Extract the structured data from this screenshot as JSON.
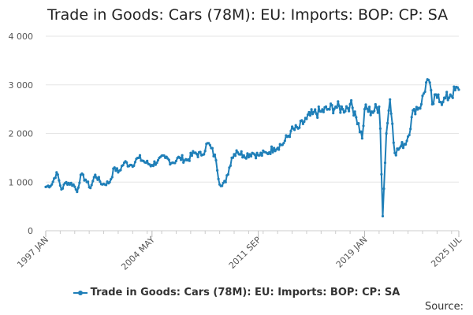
{
  "chart_data": {
    "type": "line",
    "title": "Trade in Goods: Cars (78M): EU: Imports: BOP: CP: SA",
    "xlabel": "",
    "ylabel": "",
    "ylim": [
      0,
      4000
    ],
    "y_ticks": [
      0,
      1000,
      2000,
      3000,
      4000
    ],
    "y_tick_labels": [
      "0",
      "1 000",
      "2 000",
      "3 000",
      "4 000"
    ],
    "x_tick_labels": [
      "1997 JAN",
      "2004 MAY",
      "2011 SEP",
      "2019 JAN",
      "2025 JUL"
    ],
    "x_range": [
      "1997 JAN",
      "2025 JUL"
    ],
    "frequency": "monthly",
    "grid": "horizontal",
    "legend_position": "bottom",
    "series": [
      {
        "name": "Trade in Goods: Cars (78M): EU: Imports: BOP: CP: SA",
        "color": "#1f7fb8",
        "anchors": [
          [
            "1997 JAN",
            900
          ],
          [
            "1997 JUN",
            950
          ],
          [
            "1997 OCT",
            1200
          ],
          [
            "1998 FEB",
            850
          ],
          [
            "1998 JUN",
            1000
          ],
          [
            "1998 DEC",
            950
          ],
          [
            "1999 MAR",
            800
          ],
          [
            "1999 JUN",
            1150
          ],
          [
            "1999 OCT",
            1050
          ],
          [
            "2000 FEB",
            880
          ],
          [
            "2000 JUN",
            1150
          ],
          [
            "2000 DEC",
            950
          ],
          [
            "2001 JUN",
            1000
          ],
          [
            "2001 OCT",
            1300
          ],
          [
            "2002 JAN",
            1200
          ],
          [
            "2002 JUN",
            1400
          ],
          [
            "2002 DEC",
            1350
          ],
          [
            "2003 JUN",
            1500
          ],
          [
            "2003 DEC",
            1400
          ],
          [
            "2004 MAY",
            1350
          ],
          [
            "2004 OCT",
            1450
          ],
          [
            "2005 APR",
            1500
          ],
          [
            "2005 OCT",
            1400
          ],
          [
            "2006 APR",
            1500
          ],
          [
            "2006 OCT",
            1450
          ],
          [
            "2007 APR",
            1600
          ],
          [
            "2007 OCT",
            1550
          ],
          [
            "2008 MAR",
            1800
          ],
          [
            "2008 JUN",
            1700
          ],
          [
            "2008 OCT",
            1450
          ],
          [
            "2009 JAN",
            950
          ],
          [
            "2009 JUN",
            1000
          ],
          [
            "2009 NOV",
            1500
          ],
          [
            "2010 MAR",
            1650
          ],
          [
            "2010 SEP",
            1550
          ],
          [
            "2011 APR",
            1600
          ],
          [
            "2011 SEP",
            1550
          ],
          [
            "2012 APR",
            1600
          ],
          [
            "2012 OCT",
            1700
          ],
          [
            "2013 JUN",
            1800
          ],
          [
            "2013 DEC",
            2050
          ],
          [
            "2014 JUN",
            2100
          ],
          [
            "2015 JAN",
            2300
          ],
          [
            "2015 JUN",
            2400
          ],
          [
            "2016 JAN",
            2450
          ],
          [
            "2016 JUL",
            2500
          ],
          [
            "2017 JAN",
            2550
          ],
          [
            "2017 JUL",
            2500
          ],
          [
            "2018 JAN",
            2600
          ],
          [
            "2018 MAY",
            2450
          ],
          [
            "2018 NOV",
            1900
          ],
          [
            "2019 JAN",
            2500
          ],
          [
            "2019 JUL",
            2450
          ],
          [
            "2020 JAN",
            2550
          ],
          [
            "2020 FEB",
            2100
          ],
          [
            "2020 APR",
            300
          ],
          [
            "2020 JUL",
            2000
          ],
          [
            "2020 OCT",
            2700
          ],
          [
            "2020 DEC",
            2200
          ],
          [
            "2021 FEB",
            1600
          ],
          [
            "2021 JUN",
            1700
          ],
          [
            "2021 DEC",
            1850
          ],
          [
            "2022 JUN",
            2500
          ],
          [
            "2022 DEC",
            2600
          ],
          [
            "2023 APR",
            3050
          ],
          [
            "2023 JUN",
            3100
          ],
          [
            "2023 SEP",
            2600
          ],
          [
            "2024 FEB",
            2800
          ],
          [
            "2024 JUN",
            2650
          ],
          [
            "2024 DEC",
            2800
          ],
          [
            "2025 JUL",
            2900
          ]
        ]
      }
    ]
  },
  "legend": {
    "label": "Trade in Goods: Cars (78M): EU: Imports: BOP: CP: SA"
  },
  "footer": {
    "source_label": "Source:"
  }
}
